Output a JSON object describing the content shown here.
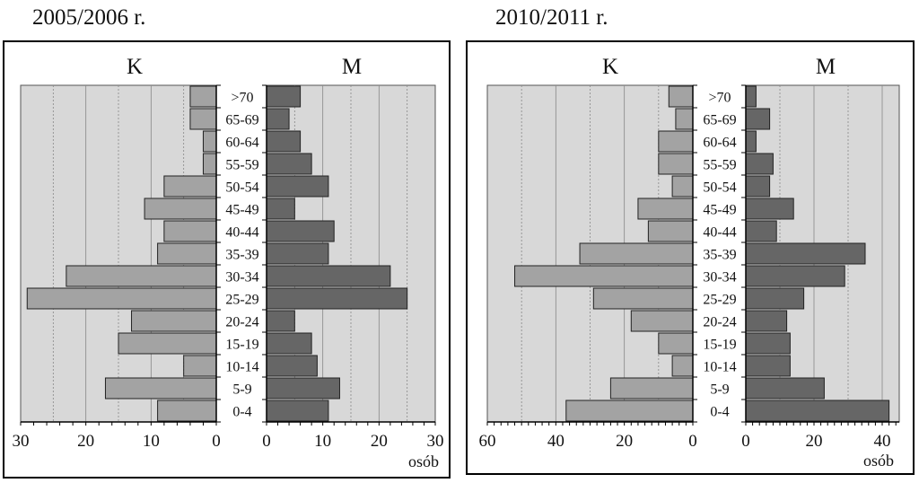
{
  "chart_data": [
    {
      "type": "bar",
      "title": "2005/2006 r.",
      "categories": [
        ">70",
        "65-69",
        "60-64",
        "55-59",
        "50-54",
        "45-49",
        "40-44",
        "35-39",
        "30-34",
        "25-29",
        "20-24",
        "15-19",
        "10-14",
        "5-9",
        "0-4"
      ],
      "series": [
        {
          "name": "K",
          "values": [
            4,
            4,
            2,
            2,
            8,
            11,
            8,
            9,
            23,
            29,
            13,
            15,
            5,
            17,
            9
          ]
        },
        {
          "name": "M",
          "values": [
            6,
            4,
            6,
            8,
            11,
            5,
            12,
            11,
            22,
            25,
            5,
            8,
            9,
            13,
            11
          ]
        }
      ],
      "xlabel": "osób",
      "left_ticks": [
        "30",
        "20",
        "10",
        "0"
      ],
      "right_ticks": [
        "0",
        "10",
        "20",
        "30"
      ],
      "xlim_left": [
        0,
        30
      ],
      "xlim_right": [
        0,
        30
      ],
      "grid": true
    },
    {
      "type": "bar",
      "title": "2010/2011 r.",
      "categories": [
        ">70",
        "65-69",
        "60-64",
        "55-59",
        "50-54",
        "45-49",
        "40-44",
        "35-39",
        "30-34",
        "25-29",
        "20-24",
        "15-19",
        "10-14",
        "5-9",
        "0-4"
      ],
      "series": [
        {
          "name": "K",
          "values": [
            7,
            5,
            10,
            10,
            6,
            16,
            13,
            33,
            52,
            29,
            18,
            10,
            6,
            24,
            37
          ]
        },
        {
          "name": "M",
          "values": [
            3,
            7,
            3,
            8,
            7,
            14,
            9,
            35,
            29,
            17,
            12,
            13,
            13,
            23,
            42
          ]
        }
      ],
      "xlabel": "osób",
      "left_ticks": [
        "60",
        "40",
        "20",
        "0"
      ],
      "right_ticks": [
        "0",
        "20",
        "40"
      ],
      "xlim_left": [
        0,
        60
      ],
      "xlim_right": [
        0,
        45
      ],
      "grid": true
    }
  ],
  "colors": {
    "plot_background": "#d8d8d8",
    "k_bars": "#a3a3a3",
    "m_bars": "#666666",
    "axis": "#000000"
  }
}
